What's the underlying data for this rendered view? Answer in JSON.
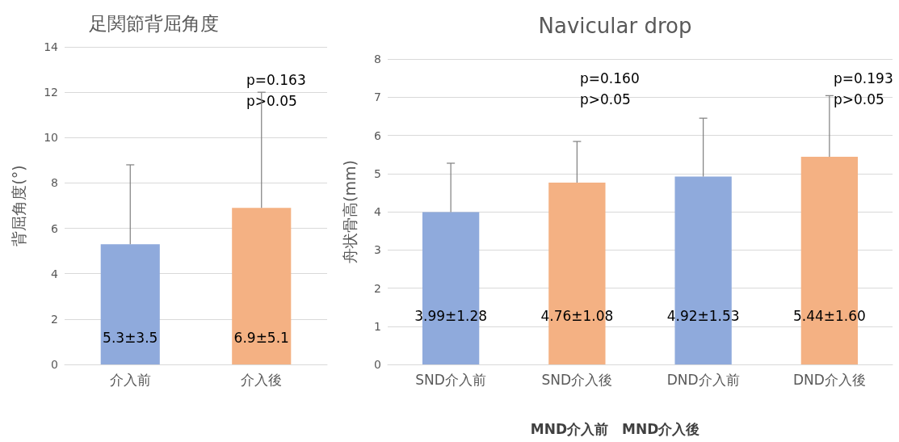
{
  "chart_data": [
    {
      "type": "bar",
      "title": "足関節背屈角度",
      "ylabel": "背屈角度(°)",
      "categories": [
        "介入前",
        "介入後"
      ],
      "values": [
        5.3,
        6.9
      ],
      "colors": [
        "#8faadc",
        "#f4b183"
      ],
      "errors": [
        [
          5.3,
          8.8
        ],
        [
          6.9,
          12.0
        ]
      ],
      "value_labels": [
        "5.3±3.5",
        "6.9±5.1"
      ],
      "ylim": [
        0,
        14
      ],
      "yticks": [
        0,
        2,
        4,
        6,
        8,
        10,
        12,
        14
      ],
      "grid": "y",
      "annotations": [
        "p=0.163\np>0.05"
      ]
    },
    {
      "type": "bar",
      "title": "Navicular drop",
      "ylabel": "舟状骨高(mm)",
      "categories": [
        "SND介入前",
        "SND介入後",
        "DND介入前",
        "DND介入後"
      ],
      "values": [
        3.99,
        4.76,
        4.92,
        5.44
      ],
      "colors": [
        "#8faadc",
        "#f4b183",
        "#8faadc",
        "#f4b183"
      ],
      "errors": [
        [
          3.99,
          5.27
        ],
        [
          4.76,
          5.84
        ],
        [
          4.92,
          6.45
        ],
        [
          5.44,
          7.04
        ]
      ],
      "value_labels": [
        "3.99±1.28",
        "4.76±1.08",
        "4.92±1.53",
        "5.44±1.60"
      ],
      "ylim": [
        0,
        8
      ],
      "yticks": [
        0,
        1,
        2,
        3,
        4,
        5,
        6,
        7,
        8
      ],
      "grid": "y",
      "annotations": [
        "p=0.160\np>0.05",
        "p=0.193\np>0.05",
        "MND介入前　MND介入後"
      ]
    }
  ]
}
